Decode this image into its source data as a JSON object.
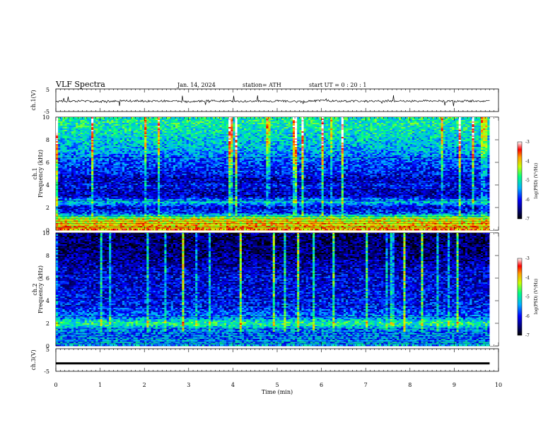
{
  "header": {
    "title": "VLF  Spectra",
    "date": "Jan. 14, 2024",
    "station": "station= ATH",
    "start_ut": "start  UT  =    0  : 20 : 1"
  },
  "colors": {
    "spectrogram_scale": [
      "#000000",
      "#00007a",
      "#0000ff",
      "#00b0ff",
      "#00ff80",
      "#c8ff00",
      "#ffa000",
      "#ff0000",
      "#ffffff"
    ]
  },
  "chart_data": [
    {
      "type": "line",
      "panel": "ch1-waveform",
      "ylabel": "ch.1(V)",
      "yticks": [
        "5",
        "-5"
      ],
      "ylim": [
        -5,
        5
      ],
      "x": [
        0,
        0.5,
        1,
        1.5,
        2,
        2.5,
        3,
        3.5,
        4,
        4.5,
        5,
        5.5,
        6,
        6.5,
        7,
        7.5,
        8,
        8.5,
        9,
        9.5,
        9.8
      ],
      "y": [
        -0.5,
        -0.3,
        -0.6,
        -0.2,
        -0.4,
        -0.3,
        -0.7,
        -0.2,
        -0.5,
        -0.4,
        -0.3,
        -0.6,
        -0.2,
        -0.4,
        -0.5,
        -0.3,
        -0.4,
        -0.2,
        -0.5,
        -0.3,
        -0.4
      ]
    },
    {
      "type": "heatmap",
      "panel": "ch1-spectrogram",
      "ylabel": "ch.1\nFrequency (kHz)",
      "yticks": [
        "0",
        "2",
        "4",
        "6",
        "8",
        "10"
      ],
      "ylim": [
        0,
        10
      ],
      "xlim": [
        0,
        10
      ],
      "colorbar_label": "log(PSD) (V²/Hz)",
      "colorbar_ticks": [
        "-3",
        "-4",
        "-5",
        "-6",
        "-7"
      ],
      "clim": [
        -7,
        -3
      ],
      "level_by_freq": [
        {
          "f": 0.5,
          "v": -4.0
        },
        {
          "f": 1.0,
          "v": -4.2
        },
        {
          "f": 1.5,
          "v": -5.8
        },
        {
          "f": 2.0,
          "v": -6.2
        },
        {
          "f": 2.5,
          "v": -5.2
        },
        {
          "f": 3.0,
          "v": -6.3
        },
        {
          "f": 3.5,
          "v": -6.2
        },
        {
          "f": 4.0,
          "v": -6.0
        },
        {
          "f": 4.5,
          "v": -6.3
        },
        {
          "f": 5.0,
          "v": -6.0
        },
        {
          "f": 5.5,
          "v": -5.9
        },
        {
          "f": 6.0,
          "v": -5.8
        },
        {
          "f": 6.5,
          "v": -5.6
        },
        {
          "f": 7.0,
          "v": -5.4
        },
        {
          "f": 8.0,
          "v": -5.2
        },
        {
          "f": 9.0,
          "v": -5.0
        },
        {
          "f": 10.0,
          "v": -4.9
        }
      ]
    },
    {
      "type": "heatmap",
      "panel": "ch2-spectrogram",
      "ylabel": "ch.2\nFrequency (kHz)",
      "yticks": [
        "0",
        "2",
        "4",
        "6",
        "8",
        "10"
      ],
      "ylim": [
        0,
        10
      ],
      "xlim": [
        0,
        10
      ],
      "colorbar_label": "log(PSD) (V²/Hz)",
      "colorbar_ticks": [
        "-3",
        "-4",
        "-5",
        "-6",
        "-7"
      ],
      "clim": [
        -7,
        -3
      ],
      "level_by_freq": [
        {
          "f": 0.5,
          "v": -5.5
        },
        {
          "f": 1.0,
          "v": -5.6
        },
        {
          "f": 1.5,
          "v": -5.5
        },
        {
          "f": 2.0,
          "v": -4.8
        },
        {
          "f": 2.5,
          "v": -5.6
        },
        {
          "f": 3.0,
          "v": -5.8
        },
        {
          "f": 3.5,
          "v": -6.0
        },
        {
          "f": 4.0,
          "v": -6.0
        },
        {
          "f": 4.5,
          "v": -6.1
        },
        {
          "f": 5.0,
          "v": -6.1
        },
        {
          "f": 5.5,
          "v": -6.2
        },
        {
          "f": 6.0,
          "v": -6.1
        },
        {
          "f": 7.0,
          "v": -6.3
        },
        {
          "f": 8.0,
          "v": -6.5
        },
        {
          "f": 9.0,
          "v": -6.6
        },
        {
          "f": 10.0,
          "v": -6.6
        }
      ]
    },
    {
      "type": "line",
      "panel": "ch3-waveform",
      "ylabel": "ch.3(V)",
      "yticks": [
        "5",
        "-5"
      ],
      "ylim": [
        -5,
        5
      ],
      "x": [
        0,
        9.8
      ],
      "y": [
        -1.5,
        -1.5
      ]
    }
  ],
  "xaxis": {
    "xlabel": "Time  (min)",
    "ticks": [
      "0",
      "1",
      "2",
      "3",
      "4",
      "5",
      "6",
      "7",
      "8",
      "9",
      "10"
    ],
    "xlim": [
      0,
      10
    ]
  }
}
